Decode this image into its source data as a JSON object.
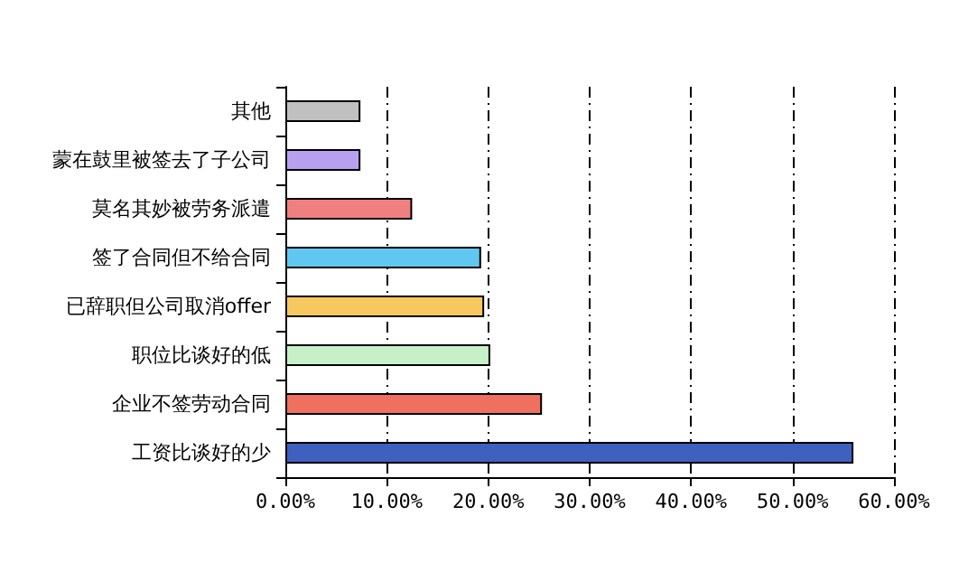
{
  "chart_data": {
    "type": "bar",
    "orientation": "horizontal",
    "categories": [
      "其他",
      "蒙在鼓里被签去了子公司",
      "莫名其妙被劳务派遣",
      "签了合同但不给合同",
      "已辞职但公司取消offer",
      "职位比谈好的低",
      "企业不签劳动合同",
      "工资比谈好的少"
    ],
    "values": [
      7.4,
      7.4,
      12.5,
      19.3,
      19.6,
      20.2,
      25.3,
      56
    ],
    "colors": [
      "#c0c0c0",
      "#b8a0f0",
      "#f08080",
      "#60c8f0",
      "#f8c860",
      "#c8f0c8",
      "#f07060",
      "#4060c0"
    ],
    "xlim": [
      0,
      60
    ],
    "xticks": [
      {
        "value": 0,
        "label": "0.00%"
      },
      {
        "value": 10,
        "label": "10.00%"
      },
      {
        "value": 20,
        "label": "20.00%"
      },
      {
        "value": 30,
        "label": "30.00%"
      },
      {
        "value": 40,
        "label": "40.00%"
      },
      {
        "value": 50,
        "label": "50.00%"
      },
      {
        "value": 60,
        "label": "60.00%"
      }
    ],
    "grid": "x"
  }
}
